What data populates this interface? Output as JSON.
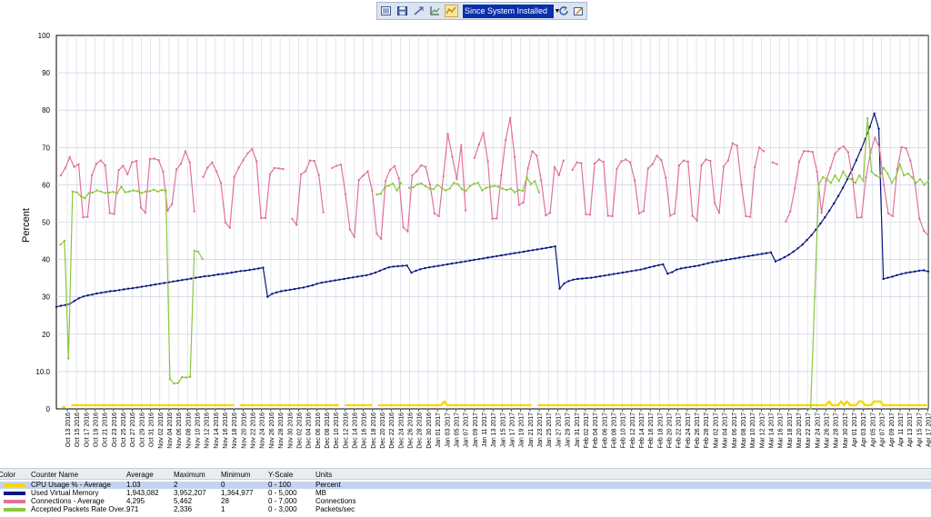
{
  "toolbar": {
    "buttons": [
      "properties-icon",
      "save-icon",
      "zoom-icon",
      "chart-icon",
      "highlight-icon"
    ],
    "active_index": 4,
    "range_value": "Since System Installed"
  },
  "chart_data": {
    "type": "line",
    "ylabel": "Percent",
    "ylim": [
      0,
      100
    ],
    "yticks": [
      "0",
      "10.0",
      "20",
      "30",
      "40",
      "50",
      "60",
      "70",
      "80",
      "90",
      "100"
    ],
    "grid": true,
    "xticks": [
      "Oct 13 2016",
      "Oct 15 2016",
      "Oct 17 2016",
      "Oct 19 2016",
      "Oct 21 2016",
      "Oct 23 2016",
      "Oct 25 2016",
      "Oct 27 2016",
      "Oct 29 2016",
      "Oct 31 2016",
      "Nov 02 2016",
      "Nov 04 2016",
      "Nov 06 2016",
      "Nov 08 2016",
      "Nov 10 2016",
      "Nov 12 2016",
      "Nov 14 2016",
      "Nov 16 2016",
      "Nov 18 2016",
      "Nov 20 2016",
      "Nov 22 2016",
      "Nov 24 2016",
      "Nov 26 2016",
      "Nov 28 2016",
      "Nov 30 2016",
      "Dec 02 2016",
      "Dec 04 2016",
      "Dec 06 2016",
      "Dec 08 2016",
      "Dec 10 2016",
      "Dec 12 2016",
      "Dec 14 2016",
      "Dec 16 2016",
      "Dec 18 2016",
      "Dec 20 2016",
      "Dec 22 2016",
      "Dec 24 2016",
      "Dec 26 2016",
      "Dec 28 2016",
      "Dec 30 2016",
      "Jan 01 2017",
      "Jan 03 2017",
      "Jan 05 2017",
      "Jan 07 2017",
      "Jan 09 2017",
      "Jan 11 2017",
      "Jan 13 2017",
      "Jan 15 2017",
      "Jan 17 2017",
      "Jan 19 2017",
      "Jan 21 2017",
      "Jan 23 2017",
      "Jan 25 2017",
      "Jan 27 2017",
      "Jan 29 2017",
      "Jan 31 2017",
      "Feb 02 2017",
      "Feb 04 2017",
      "Feb 06 2017",
      "Feb 08 2017",
      "Feb 10 2017",
      "Feb 12 2017",
      "Feb 14 2017",
      "Feb 16 2017",
      "Feb 18 2017",
      "Feb 20 2017",
      "Feb 22 2017",
      "Feb 24 2017",
      "Feb 26 2017",
      "Feb 28 2017",
      "Mar 02 2017",
      "Mar 04 2017",
      "Mar 06 2017",
      "Mar 08 2017",
      "Mar 10 2017",
      "Mar 12 2017",
      "Mar 14 2017",
      "Mar 16 2017",
      "Mar 18 2017",
      "Mar 20 2017",
      "Mar 22 2017",
      "Mar 24 2017",
      "Mar 26 2017",
      "Mar 28 2017",
      "Mar 30 2017",
      "Apr 01 2017",
      "Apr 03 2017",
      "Apr 05 2017",
      "Apr 07 2017",
      "Apr 09 2017",
      "Apr 11 2017",
      "Apr 13 2017",
      "Apr 15 2017",
      "Apr 17 2017"
    ],
    "x_start": "Oct 13 2016",
    "x_step_days": 1,
    "series": [
      {
        "name": "CPU Usage % - Average",
        "color": "#f5d800",
        "values": [
          null,
          null,
          0.5,
          0.5,
          null,
          1,
          1,
          1,
          1,
          1,
          1,
          1,
          1,
          1,
          1,
          1,
          1,
          1,
          1,
          1,
          1,
          1,
          1,
          1,
          1,
          1,
          1,
          1,
          1,
          1,
          1,
          1,
          1,
          1,
          1,
          1,
          1,
          1,
          1,
          1,
          1,
          1,
          1,
          1,
          1,
          1,
          1,
          1,
          1,
          1,
          1,
          1,
          1,
          1,
          1,
          1,
          1,
          1,
          1,
          1,
          null,
          1,
          1,
          1,
          1,
          1,
          1,
          1,
          1,
          1,
          1,
          1,
          1,
          1,
          1,
          1,
          1,
          1,
          1,
          1,
          1,
          1,
          1,
          1,
          1,
          1,
          1,
          1,
          1,
          1,
          1,
          1,
          1,
          1,
          1,
          null,
          1,
          1,
          1,
          1,
          1,
          1,
          1,
          1,
          1,
          1,
          null,
          1,
          1,
          1,
          1,
          1,
          1,
          1,
          1,
          1,
          1,
          1,
          1,
          1,
          1,
          1,
          1,
          1,
          1,
          1,
          1,
          1,
          1,
          2,
          1,
          1,
          1,
          1,
          1,
          1,
          1,
          1,
          1,
          1,
          1,
          1,
          1,
          1,
          1,
          1,
          1,
          1,
          1,
          1,
          1,
          1,
          1,
          1,
          1,
          1,
          1,
          1,
          1,
          null,
          1,
          1,
          1,
          1,
          1,
          1,
          1,
          1,
          1,
          1,
          1,
          1,
          1,
          1,
          1,
          1,
          1,
          1,
          1,
          1,
          1,
          1,
          1,
          1,
          1,
          1,
          1,
          1,
          1,
          1,
          1,
          1,
          1,
          1,
          1,
          1,
          1,
          1,
          1,
          1,
          1,
          1,
          1,
          1,
          1,
          1,
          1,
          1,
          1,
          1,
          1,
          1,
          1,
          1,
          1,
          1,
          1,
          1,
          1,
          1,
          1,
          1,
          1,
          1,
          1,
          1,
          1,
          1,
          1,
          1,
          1,
          1,
          1,
          1,
          1,
          1,
          1,
          1,
          1,
          1,
          1,
          1,
          1,
          1,
          1,
          1,
          1,
          1,
          1,
          1,
          1,
          1,
          1,
          1,
          1,
          1,
          1,
          2,
          1,
          1,
          1,
          2,
          1,
          2,
          1,
          1,
          1,
          2,
          2,
          1,
          1,
          1,
          2,
          2,
          2,
          1,
          1,
          1,
          1,
          1,
          1,
          1,
          1,
          1,
          1,
          1,
          1,
          1,
          1,
          1,
          1
        ]
      },
      {
        "name": "Used Virtual Memory",
        "color": "#0a1680",
        "values": [
          27.3,
          27.6,
          27.8,
          28.1,
          28.9,
          29.6,
          30.1,
          30.4,
          30.6,
          30.9,
          31.1,
          31.3,
          31.5,
          31.6,
          31.8,
          32.0,
          32.2,
          32.3,
          32.5,
          32.7,
          32.9,
          33.1,
          33.3,
          33.5,
          33.7,
          33.9,
          34.1,
          34.3,
          34.5,
          34.7,
          34.9,
          35.1,
          35.3,
          35.5,
          35.6,
          35.8,
          36.0,
          36.1,
          36.3,
          36.5,
          36.7,
          36.9,
          37.0,
          37.2,
          37.4,
          37.6,
          37.8,
          30.0,
          30.8,
          31.2,
          31.5,
          31.7,
          31.9,
          32.1,
          32.3,
          32.5,
          32.8,
          33.1,
          33.5,
          33.8,
          34.0,
          34.2,
          34.4,
          34.6,
          34.8,
          35.0,
          35.2,
          35.4,
          35.6,
          35.8,
          36.1,
          36.5,
          37.0,
          37.5,
          37.9,
          38.1,
          38.2,
          38.3,
          38.4,
          36.5,
          37.0,
          37.4,
          37.7,
          37.9,
          38.1,
          38.3,
          38.5,
          38.7,
          38.9,
          39.1,
          39.3,
          39.5,
          39.7,
          39.9,
          40.1,
          40.3,
          40.5,
          40.7,
          40.9,
          41.1,
          41.3,
          41.5,
          41.7,
          41.9,
          42.1,
          42.3,
          42.5,
          42.7,
          42.9,
          43.1,
          43.3,
          43.5,
          32.2,
          33.6,
          34.2,
          34.6,
          34.8,
          34.9,
          35.0,
          35.1,
          35.3,
          35.5,
          35.7,
          35.9,
          36.1,
          36.3,
          36.5,
          36.7,
          36.9,
          37.1,
          37.3,
          37.6,
          37.9,
          38.2,
          38.5,
          38.7,
          36.2,
          36.6,
          37.3,
          37.6,
          37.8,
          38.0,
          38.2,
          38.4,
          38.7,
          39.0,
          39.3,
          39.5,
          39.7,
          39.9,
          40.1,
          40.3,
          40.5,
          40.7,
          40.9,
          41.1,
          41.3,
          41.5,
          41.7,
          41.9,
          39.5,
          40.0,
          40.6,
          41.3,
          42.1,
          43.0,
          44.0,
          45.2,
          46.5,
          48.0,
          49.6,
          51.3,
          53.1,
          55.0,
          57.0,
          59.2,
          61.5,
          64.0,
          66.6,
          69.4,
          72.3,
          75.5,
          79.1,
          75.0,
          34.8,
          35.1,
          35.4,
          35.8,
          36.1,
          36.4,
          36.6,
          36.8,
          37.0,
          37.1,
          36.8
        ]
      },
      {
        "name": "Connections - Average",
        "color": "#e0739a",
        "values": [
          null,
          62.5,
          64.5,
          67.4,
          64.8,
          65.5,
          51.3,
          51.4,
          62.5,
          65.6,
          66.5,
          65.2,
          52.4,
          52.2,
          63.9,
          65.1,
          62.8,
          66.0,
          66.4,
          53.9,
          52.5,
          66.9,
          67.0,
          66.6,
          63.5,
          53.1,
          54.8,
          64.1,
          65.6,
          69.0,
          66.0,
          52.9,
          null,
          62.1,
          64.6,
          66.0,
          63.6,
          60.5,
          49.9,
          48.5,
          62.1,
          64.6,
          66.6,
          68.4,
          69.6,
          66.3,
          51.1,
          51.1,
          62.8,
          64.5,
          64.4,
          64.2,
          null,
          50.9,
          49.3,
          62.8,
          63.6,
          66.5,
          66.4,
          62.6,
          52.6,
          null,
          64.5,
          65.1,
          65.4,
          57.5,
          48.0,
          46.0,
          61.3,
          62.5,
          63.6,
          58.4,
          46.9,
          45.5,
          61.0,
          64.0,
          65.0,
          61.7,
          48.6,
          47.5,
          62.5,
          63.6,
          65.2,
          64.8,
          60.1,
          52.3,
          51.6,
          62.3,
          73.6,
          67.5,
          61.5,
          70.6,
          53.1,
          null,
          67.2,
          70.8,
          73.9,
          66.3,
          50.9,
          51.0,
          62.5,
          72.0,
          77.9,
          67.5,
          54.6,
          55.3,
          64.4,
          69.0,
          67.8,
          61.2,
          51.8,
          52.5,
          64.8,
          62.6,
          66.5,
          null,
          64.0,
          66.0,
          65.8,
          52.1,
          52.0,
          65.7,
          66.8,
          66.1,
          51.7,
          51.6,
          64.3,
          66.3,
          66.8,
          66.0,
          61.2,
          52.3,
          53.0,
          64.4,
          65.5,
          67.8,
          66.6,
          61.9,
          51.7,
          52.3,
          65.2,
          66.5,
          66.2,
          51.7,
          50.4,
          65.2,
          66.8,
          66.4,
          55.1,
          52.5,
          64.9,
          66.5,
          71.1,
          70.5,
          60.0,
          51.6,
          51.4,
          64.7,
          70.0,
          69.0,
          null,
          66.0,
          65.5,
          null,
          50.2,
          52.9,
          59.0,
          66.2,
          69.0,
          69.0,
          68.8,
          63.5,
          52.5,
          61.0,
          64.5,
          68.3,
          69.6,
          70.3,
          68.7,
          61.5,
          51.2,
          51.3,
          62.0,
          68.6,
          72.6,
          70.0,
          60.0,
          52.3,
          51.6,
          64.2,
          70.1,
          69.8,
          66.5,
          60.5,
          51.0,
          47.7,
          46.5
        ]
      },
      {
        "name": "Accepted Packets Rate Over...",
        "color": "#8dc63f",
        "values": [
          null,
          44.0,
          45.0,
          13.5,
          58.2,
          58.0,
          57.0,
          56.4,
          57.8,
          57.9,
          58.5,
          58.2,
          57.8,
          57.9,
          58.1,
          57.7,
          59.5,
          58.0,
          58.2,
          58.5,
          58.3,
          57.8,
          58.2,
          58.3,
          58.7,
          58.2,
          58.6,
          58.5,
          8.0,
          6.8,
          6.9,
          8.5,
          8.4,
          8.6,
          42.3,
          42.1,
          40.2,
          null,
          null,
          null,
          null,
          null,
          null,
          null,
          null,
          null,
          null,
          null,
          null,
          null,
          null,
          null,
          null,
          null,
          null,
          null,
          null,
          null,
          null,
          null,
          null,
          null,
          null,
          null,
          null,
          null,
          null,
          null,
          null,
          null,
          null,
          null,
          null,
          null,
          null,
          null,
          null,
          null,
          null,
          57.4,
          57.6,
          59.4,
          59.8,
          60.3,
          58.5,
          60.5,
          null,
          59.2,
          59.3,
          60.1,
          60.4,
          59.6,
          59.0,
          58.8,
          60.0,
          59.2,
          58.5,
          59.0,
          60.5,
          60.2,
          58.8,
          58.4,
          59.7,
          60.3,
          60.5,
          58.5,
          59.2,
          59.5,
          59.7,
          59.5,
          59.0,
          58.6,
          59.0,
          58.0,
          58.6,
          58.4,
          62.0,
          60.2,
          61.0,
          58.0,
          null,
          null,
          null,
          null,
          null,
          null,
          null,
          null,
          null,
          null,
          null,
          null,
          null,
          null,
          null,
          null,
          null,
          null,
          null,
          null,
          null,
          null,
          null,
          null,
          null,
          null,
          null,
          null,
          null,
          null,
          null,
          null,
          null,
          null,
          null,
          null,
          null,
          null,
          null,
          null,
          null,
          null,
          null,
          null,
          null,
          null,
          null,
          null,
          null,
          null,
          null,
          null,
          null,
          null,
          null,
          null,
          null,
          null,
          null,
          null,
          null,
          null,
          null,
          null,
          null,
          null,
          0,
          30.0,
          60.0,
          62.0,
          61.5,
          60.5,
          62.5,
          61.0,
          63.5,
          62.0,
          61.5,
          60.5,
          62.5,
          61.0,
          77.8,
          63.5,
          62.5,
          62.0,
          64.5,
          63.0,
          60.5,
          62.0,
          65.5,
          62.5,
          63.0,
          62.0,
          60.5,
          61.5,
          60.0,
          61.0
        ]
      }
    ]
  },
  "legend": {
    "headers": [
      "Color",
      "Counter Name",
      "Average",
      "Maximum",
      "Minimum",
      "Y-Scale",
      "Units"
    ],
    "rows": [
      {
        "color": "#f5d800",
        "name": "CPU Usage % - Average",
        "average": "1.03",
        "maximum": "2",
        "minimum": "0",
        "yscale": "0 - 100",
        "units": "Percent",
        "selected": true
      },
      {
        "color": "#0a1680",
        "name": "Used Virtual Memory",
        "average": "1,943,082",
        "maximum": "3,952,207",
        "minimum": "1,364,977",
        "yscale": "0 - 5,000",
        "units": "MB",
        "selected": false
      },
      {
        "color": "#e0739a",
        "name": "Connections - Average",
        "average": "4,295",
        "maximum": "5,462",
        "minimum": "28",
        "yscale": "0 - 7,000",
        "units": "Connections",
        "selected": false
      },
      {
        "color": "#8dc63f",
        "name": "Accepted Packets Rate Over...",
        "average": "971",
        "maximum": "2,336",
        "minimum": "1",
        "yscale": "0 - 3,000",
        "units": "Packets/sec",
        "selected": false
      }
    ]
  }
}
